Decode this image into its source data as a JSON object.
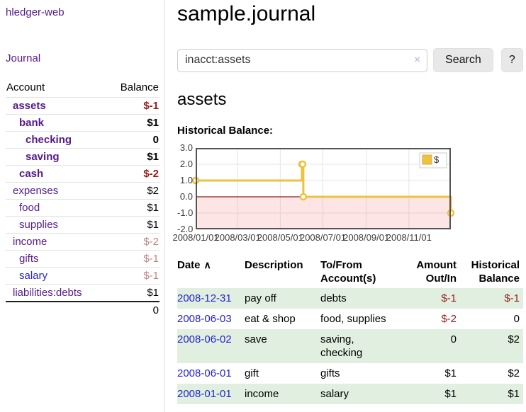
{
  "colors": {
    "link_purple": "#551a8b",
    "link_blue": "#2525cc",
    "negative_strong": "#951c1c",
    "negative_muted": "#bd8484",
    "row_green": "#e1efe0",
    "chart_line": "#edc240",
    "chart_zero_line": "#8b1a1a"
  },
  "sidebar": {
    "app_title": "hledger-web",
    "journal_link": "Journal",
    "accounts_table": {
      "headers": {
        "account": "Account",
        "balance": "Balance"
      },
      "rows": [
        {
          "account": "assets",
          "balance": "$-1",
          "level": 1,
          "bold": true,
          "balance_class": "neg"
        },
        {
          "account": "bank",
          "balance": "$1",
          "level": 2,
          "bold": true,
          "balance_class": ""
        },
        {
          "account": "checking",
          "balance": "0",
          "level": 3,
          "bold": true,
          "balance_class": ""
        },
        {
          "account": "saving",
          "balance": "$1",
          "level": 3,
          "bold": true,
          "balance_class": ""
        },
        {
          "account": "cash",
          "balance": "$-2",
          "level": 2,
          "bold": true,
          "balance_class": "neg"
        },
        {
          "account": "expenses",
          "balance": "$2",
          "level": 1,
          "bold": false,
          "balance_class": ""
        },
        {
          "account": "food",
          "balance": "$1",
          "level": 2,
          "bold": false,
          "balance_class": ""
        },
        {
          "account": "supplies",
          "balance": "$1",
          "level": 2,
          "bold": false,
          "balance_class": ""
        },
        {
          "account": "income",
          "balance": "$-2",
          "level": 1,
          "bold": false,
          "balance_class": "negmuted"
        },
        {
          "account": "gifts",
          "balance": "$-1",
          "level": 2,
          "bold": false,
          "balance_class": "negmuted"
        },
        {
          "account": "salary",
          "balance": "$-1",
          "level": 2,
          "bold": false,
          "balance_class": "negmuted",
          "link_class": "blue"
        },
        {
          "account": "liabilities:debts",
          "balance": "$1",
          "level": 1,
          "bold": false,
          "balance_class": ""
        }
      ],
      "total": "0"
    }
  },
  "header": {
    "title": "sample.journal"
  },
  "search": {
    "value": "inacct:assets",
    "clear_icon": "×",
    "button_label": "Search",
    "help_label": "?"
  },
  "account_page": {
    "title": "assets",
    "chart_label": "Historical Balance:"
  },
  "chart_data": {
    "type": "line",
    "title": "Historical Balance",
    "step": true,
    "series": [
      {
        "name": "$",
        "x": [
          "2008-01-01",
          "2008-06-01",
          "2008-06-02",
          "2008-06-03",
          "2008-12-31"
        ],
        "values": [
          1,
          2,
          2,
          0,
          -1
        ]
      }
    ],
    "xlim": [
      "2008-01-01",
      "2008-12-31"
    ],
    "ylim": [
      -2,
      3
    ],
    "xticks": [
      {
        "label": "2008/01/01",
        "date": "2008-01-01"
      },
      {
        "label": "2008/03/01",
        "date": "2008-03-01"
      },
      {
        "label": "2008/05/01",
        "date": "2008-05-01"
      },
      {
        "label": "2008/07/01",
        "date": "2008-07-01"
      },
      {
        "label": "2008/09/01",
        "date": "2008-09-01"
      },
      {
        "label": "2008/11/01",
        "date": "2008-11-01"
      }
    ],
    "yticks": [
      {
        "label": "3.0",
        "value": 3
      },
      {
        "label": "2.0",
        "value": 2
      },
      {
        "label": "1.0",
        "value": 1
      },
      {
        "label": "0.0",
        "value": 0
      },
      {
        "label": "-1.0",
        "value": -1
      },
      {
        "label": "-2.0",
        "value": -2
      }
    ],
    "legend": {
      "position": "top-right",
      "entries": [
        {
          "label": "$",
          "color": "#edc240"
        }
      ]
    },
    "grid": true,
    "negative_region": true
  },
  "register": {
    "sort_icon": "∧",
    "columns": [
      {
        "label": "Date",
        "align": "left",
        "sortable": true
      },
      {
        "label": "Description",
        "align": "left"
      },
      {
        "label": "To/From Account(s)",
        "align": "left"
      },
      {
        "label": "Amount Out/In",
        "align": "right"
      },
      {
        "label": "Historical Balance",
        "align": "right"
      }
    ],
    "rows": [
      {
        "date": "2008-12-31",
        "description": "pay off",
        "accounts": "debts",
        "amount": "$-1",
        "amount_class": "neg",
        "balance": "$-1",
        "balance_class": "neg",
        "green": true
      },
      {
        "date": "2008-06-03",
        "description": "eat & shop",
        "accounts": "food, supplies",
        "amount": "$-2",
        "amount_class": "neg",
        "balance": "0",
        "balance_class": "",
        "green": false
      },
      {
        "date": "2008-06-02",
        "description": "save",
        "accounts": "saving, checking",
        "amount": "0",
        "amount_class": "",
        "balance": "$2",
        "balance_class": "",
        "green": true
      },
      {
        "date": "2008-06-01",
        "description": "gift",
        "accounts": "gifts",
        "amount": "$1",
        "amount_class": "",
        "balance": "$2",
        "balance_class": "",
        "green": false
      },
      {
        "date": "2008-01-01",
        "description": "income",
        "accounts": "salary",
        "amount": "$1",
        "amount_class": "",
        "balance": "$1",
        "balance_class": "",
        "green": true
      }
    ]
  }
}
